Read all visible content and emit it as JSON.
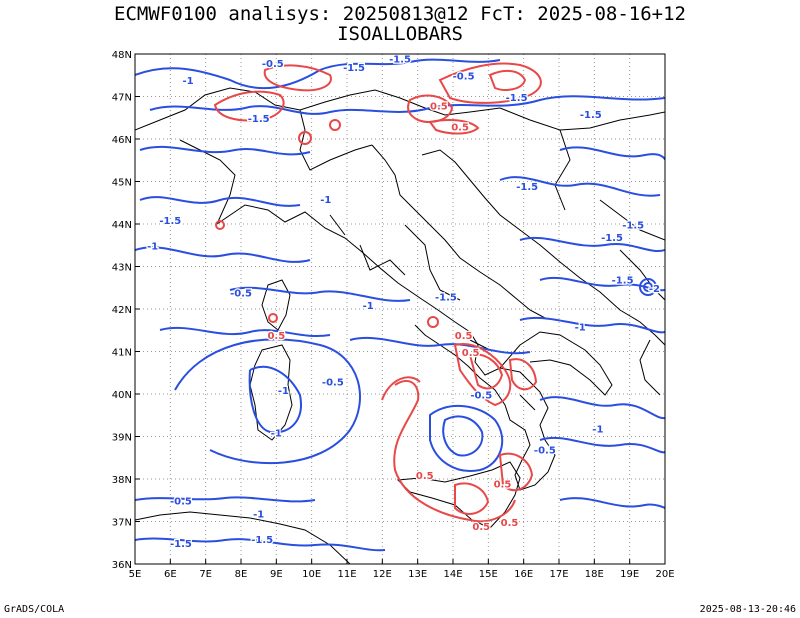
{
  "header": {
    "title_line1": "ECMWF0100 analisys: 20250813@12 FcT: 2025-08-16+12",
    "title_line2": "ISOALLOBARS"
  },
  "footer": {
    "left": "GrADS/COLA",
    "right": "2025-08-13-20:46"
  },
  "map": {
    "lon_range": [
      5,
      20
    ],
    "lat_range": [
      36,
      48
    ],
    "lon_ticks": [
      "5E",
      "6E",
      "7E",
      "8E",
      "9E",
      "10E",
      "11E",
      "12E",
      "13E",
      "14E",
      "15E",
      "16E",
      "17E",
      "18E",
      "19E",
      "20E"
    ],
    "lat_ticks": [
      "36N",
      "37N",
      "38N",
      "39N",
      "40N",
      "41N",
      "42N",
      "43N",
      "44N",
      "45N",
      "46N",
      "47N",
      "48N"
    ],
    "grid": "dotted",
    "colors": {
      "negative": "#2a4fe0",
      "positive": "#e84848",
      "coast": "#000000",
      "grid": "#999999"
    },
    "contour_labels": [
      {
        "text": "-0.5",
        "lon": 8.9,
        "lat": 47.7,
        "sign": "neg"
      },
      {
        "text": "-1",
        "lon": 6.5,
        "lat": 47.3,
        "sign": "neg"
      },
      {
        "text": "-1.5",
        "lon": 11.2,
        "lat": 47.6,
        "sign": "neg"
      },
      {
        "text": "-1.5",
        "lon": 12.5,
        "lat": 47.8,
        "sign": "neg"
      },
      {
        "text": "-0.5",
        "lon": 14.3,
        "lat": 47.4,
        "sign": "neg"
      },
      {
        "text": "0.5",
        "lon": 13.6,
        "lat": 46.7,
        "sign": "pos"
      },
      {
        "text": "-1.5",
        "lon": 15.8,
        "lat": 46.9,
        "sign": "neg"
      },
      {
        "text": "-1.5",
        "lon": 17.9,
        "lat": 46.5,
        "sign": "neg"
      },
      {
        "text": "-1.5",
        "lon": 8.5,
        "lat": 46.4,
        "sign": "neg"
      },
      {
        "text": "0.5",
        "lon": 14.2,
        "lat": 46.2,
        "sign": "pos"
      },
      {
        "text": "-1",
        "lon": 10.4,
        "lat": 44.5,
        "sign": "neg"
      },
      {
        "text": "-1.5",
        "lon": 6.0,
        "lat": 44.0,
        "sign": "neg"
      },
      {
        "text": "-1",
        "lon": 5.5,
        "lat": 43.4,
        "sign": "neg"
      },
      {
        "text": "-1.5",
        "lon": 16.1,
        "lat": 44.8,
        "sign": "neg"
      },
      {
        "text": "-1.5",
        "lon": 18.5,
        "lat": 43.6,
        "sign": "neg"
      },
      {
        "text": "-1.5",
        "lon": 19.1,
        "lat": 43.9,
        "sign": "neg"
      },
      {
        "text": "-1.5",
        "lon": 18.8,
        "lat": 42.6,
        "sign": "neg"
      },
      {
        "text": "-2",
        "lon": 19.7,
        "lat": 42.4,
        "sign": "neg"
      },
      {
        "text": "-0.5",
        "lon": 8.0,
        "lat": 42.3,
        "sign": "neg"
      },
      {
        "text": "-1",
        "lon": 11.6,
        "lat": 42.0,
        "sign": "neg"
      },
      {
        "text": "-1.5",
        "lon": 13.8,
        "lat": 42.2,
        "sign": "neg"
      },
      {
        "text": "-1",
        "lon": 17.6,
        "lat": 41.5,
        "sign": "neg"
      },
      {
        "text": "0.5",
        "lon": 9.0,
        "lat": 41.3,
        "sign": "pos"
      },
      {
        "text": "-1",
        "lon": 9.2,
        "lat": 40.0,
        "sign": "neg"
      },
      {
        "text": "0.5",
        "lon": 14.3,
        "lat": 41.3,
        "sign": "pos"
      },
      {
        "text": "0.5",
        "lon": 14.5,
        "lat": 40.9,
        "sign": "pos"
      },
      {
        "text": "-0.5",
        "lon": 10.6,
        "lat": 40.2,
        "sign": "neg"
      },
      {
        "text": "-0.5",
        "lon": 14.8,
        "lat": 39.9,
        "sign": "neg"
      },
      {
        "text": "-1",
        "lon": 9.0,
        "lat": 39.0,
        "sign": "neg"
      },
      {
        "text": "-1",
        "lon": 18.1,
        "lat": 39.1,
        "sign": "neg"
      },
      {
        "text": "-0.5",
        "lon": 16.6,
        "lat": 38.6,
        "sign": "neg"
      },
      {
        "text": "0.5",
        "lon": 13.2,
        "lat": 38.0,
        "sign": "pos"
      },
      {
        "text": "0.5",
        "lon": 15.4,
        "lat": 37.8,
        "sign": "pos"
      },
      {
        "text": "-0.5",
        "lon": 6.3,
        "lat": 37.4,
        "sign": "neg"
      },
      {
        "text": "-1",
        "lon": 8.5,
        "lat": 37.1,
        "sign": "neg"
      },
      {
        "text": "-1.5",
        "lon": 6.3,
        "lat": 36.4,
        "sign": "neg"
      },
      {
        "text": "-1.5",
        "lon": 8.6,
        "lat": 36.5,
        "sign": "neg"
      },
      {
        "text": "0.5",
        "lon": 14.8,
        "lat": 36.8,
        "sign": "pos"
      },
      {
        "text": "0.5",
        "lon": 15.6,
        "lat": 36.9,
        "sign": "pos"
      }
    ]
  }
}
